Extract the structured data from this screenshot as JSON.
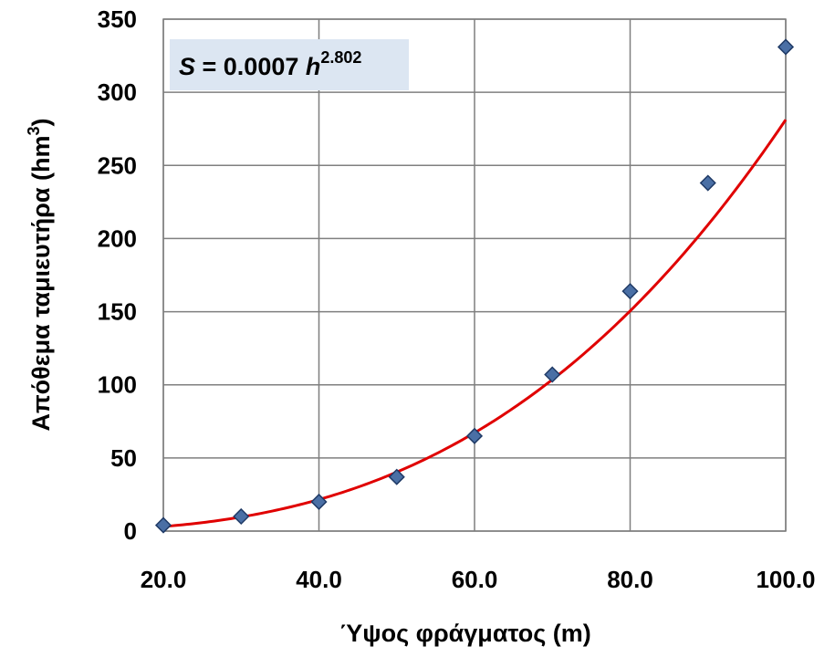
{
  "chart_data": {
    "type": "scatter",
    "xlabel": "Ύψος φράγματος (m)",
    "ylabel": "Απόθεμα ταμιευτήρα (hm",
    "ylabel_sup": "3",
    "ylabel_close": ")",
    "xlim": [
      20,
      100
    ],
    "ylim": [
      0,
      350
    ],
    "x_ticks": [
      20,
      40,
      60,
      80,
      100
    ],
    "x_tick_labels": [
      "20.0",
      "40.0",
      "60.0",
      "80.0",
      "100.0"
    ],
    "y_ticks": [
      0,
      50,
      100,
      150,
      200,
      250,
      300,
      350
    ],
    "y_tick_labels": [
      "0",
      "50",
      "100",
      "150",
      "200",
      "250",
      "300",
      "350"
    ],
    "grid": true,
    "series": [
      {
        "x": [
          20,
          30,
          40,
          50,
          60,
          70,
          80,
          90,
          100
        ],
        "y": [
          4,
          10,
          20,
          37,
          65,
          107,
          164,
          238,
          331
        ],
        "marker": "diamond",
        "color": "#4A6FA5",
        "edge_color": "#1F3A66"
      }
    ],
    "trendline": {
      "type": "power",
      "coefficient": 0.0007,
      "exponent": 2.802,
      "color": "#E00000"
    },
    "annotation": {
      "s": "S",
      "eq": " = 0.0007 ",
      "h": "h",
      "exp": "2.802",
      "box_color": "#DCE6F2"
    }
  }
}
